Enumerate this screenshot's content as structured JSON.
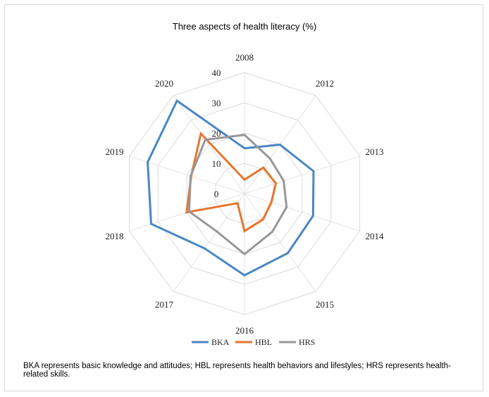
{
  "chart_data": {
    "type": "radar",
    "title": "Three aspects of health literacy (%)",
    "categories": [
      "2008",
      "2012",
      "2013",
      "2014",
      "2015",
      "2016",
      "2017",
      "2018",
      "2019",
      "2020"
    ],
    "rlim": [
      0,
      40
    ],
    "ticks": [
      "0",
      "10",
      "20",
      "30",
      "40"
    ],
    "grid": true,
    "legend_position": "bottom",
    "series": [
      {
        "name": "BKA",
        "color": "#4a86c5",
        "values": [
          14.97,
          19.97,
          23.95,
          23.8,
          24.3,
          27.0,
          22.4,
          32.4,
          33.6,
          37.9
        ]
      },
      {
        "name": "HBL",
        "color": "#e8742c",
        "values": [
          4.6,
          10.6,
          10.9,
          9.3,
          10.5,
          12.4,
          3.9,
          20.1,
          18.5,
          24.5
        ]
      },
      {
        "name": "HRS",
        "color": "#979797",
        "values": [
          19.4,
          14.3,
          13.6,
          14.6,
          15.6,
          20.0,
          15.5,
          19.2,
          18.7,
          22.0
        ]
      }
    ]
  },
  "caption": "BKA represents basic knowledge and attitudes; HBL represents health behaviors and lifestyles; HRS represents health-related skills."
}
